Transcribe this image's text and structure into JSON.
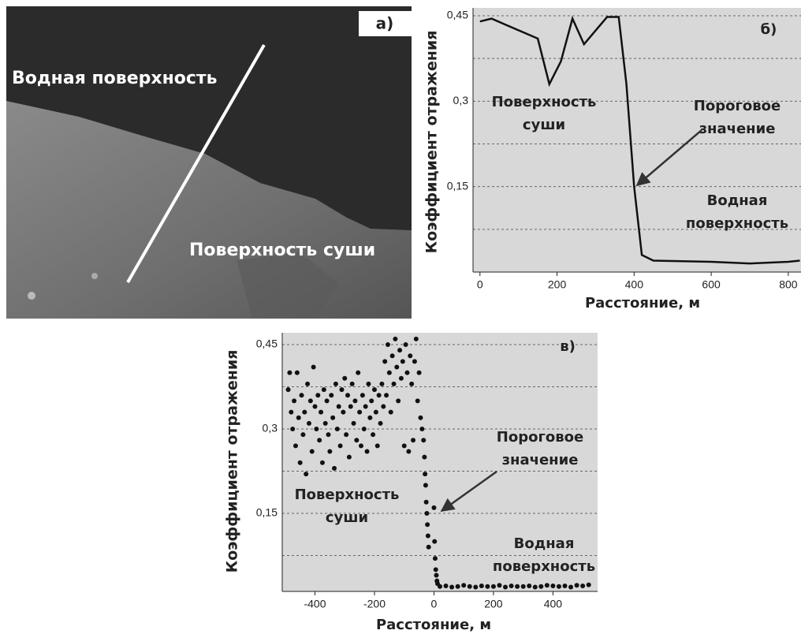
{
  "image": {
    "label": "а)",
    "annotations": [
      "Водная поверхность",
      "Поверхность суши"
    ]
  },
  "chart_data": [
    {
      "type": "line",
      "label": "б)",
      "xlabel": "Расстояние, м",
      "ylabel": "Коэффициент отражения",
      "color": "#111111",
      "x": [
        0,
        30,
        150,
        180,
        210,
        240,
        270,
        330,
        360,
        380,
        400,
        420,
        450,
        600,
        700,
        800,
        830
      ],
      "values": [
        0.44,
        0.445,
        0.41,
        0.33,
        0.37,
        0.445,
        0.4,
        0.448,
        0.448,
        0.33,
        0.15,
        0.03,
        0.02,
        0.018,
        0.015,
        0.018,
        0.02
      ],
      "xlim": [
        -18,
        833
      ],
      "ylim": [
        0,
        0.45
      ],
      "xticks": [
        0,
        200,
        400,
        600,
        800
      ],
      "yticks": [
        {
          "value": 0.15,
          "label": "0,15"
        },
        {
          "value": 0.3,
          "label": "0,3"
        },
        {
          "value": 0.45,
          "label": "0,45"
        }
      ],
      "minor_yticks": [
        0.075,
        0.225,
        0.375
      ],
      "grid": true,
      "annotations": [
        [
          "Поверхность",
          "суши"
        ],
        [
          "Пороговое",
          "значение"
        ],
        [
          "Водная",
          "поверхность"
        ]
      ]
    },
    {
      "type": "scatter",
      "label": "в)",
      "xlabel": "Расстояние, м",
      "ylabel": "Коэффициент отражения",
      "color": "#111111",
      "x": [
        -490,
        -485,
        -480,
        -475,
        -470,
        -465,
        -460,
        -455,
        -450,
        -445,
        -440,
        -435,
        -430,
        -425,
        -420,
        -415,
        -410,
        -405,
        -400,
        -395,
        -390,
        -385,
        -380,
        -375,
        -370,
        -365,
        -360,
        -355,
        -350,
        -345,
        -340,
        -335,
        -330,
        -325,
        -320,
        -315,
        -310,
        -305,
        -300,
        -295,
        -290,
        -285,
        -280,
        -275,
        -270,
        -265,
        -260,
        -255,
        -250,
        -245,
        -240,
        -235,
        -230,
        -225,
        -220,
        -215,
        -210,
        -205,
        -200,
        -195,
        -190,
        -185,
        -180,
        -175,
        -170,
        -165,
        -160,
        -155,
        -150,
        -145,
        -140,
        -135,
        -130,
        -125,
        -120,
        -115,
        -110,
        -105,
        -100,
        -95,
        -90,
        -85,
        -80,
        -75,
        -70,
        -65,
        -60,
        -55,
        -50,
        -45,
        -40,
        -35,
        -32,
        -30,
        -28,
        -26,
        -24,
        -22,
        -20,
        -18,
        0,
        2,
        4,
        6,
        8,
        10,
        12,
        20,
        40,
        60,
        80,
        100,
        120,
        140,
        160,
        180,
        200,
        220,
        240,
        260,
        280,
        300,
        320,
        340,
        360,
        380,
        400,
        420,
        440,
        460,
        480,
        500,
        520
      ],
      "values": [
        0.37,
        0.4,
        0.33,
        0.3,
        0.35,
        0.27,
        0.4,
        0.32,
        0.24,
        0.36,
        0.29,
        0.33,
        0.22,
        0.38,
        0.31,
        0.35,
        0.26,
        0.41,
        0.34,
        0.3,
        0.36,
        0.28,
        0.33,
        0.24,
        0.37,
        0.31,
        0.35,
        0.29,
        0.26,
        0.36,
        0.32,
        0.23,
        0.38,
        0.3,
        0.34,
        0.27,
        0.37,
        0.33,
        0.39,
        0.29,
        0.36,
        0.25,
        0.34,
        0.38,
        0.31,
        0.35,
        0.28,
        0.4,
        0.33,
        0.27,
        0.36,
        0.3,
        0.34,
        0.26,
        0.38,
        0.32,
        0.35,
        0.29,
        0.37,
        0.33,
        0.27,
        0.36,
        0.31,
        0.38,
        0.34,
        0.42,
        0.36,
        0.45,
        0.4,
        0.33,
        0.43,
        0.38,
        0.46,
        0.41,
        0.35,
        0.44,
        0.39,
        0.42,
        0.27,
        0.45,
        0.4,
        0.26,
        0.43,
        0.38,
        0.28,
        0.42,
        0.46,
        0.35,
        0.4,
        0.32,
        0.3,
        0.28,
        0.25,
        0.22,
        0.2,
        0.17,
        0.15,
        0.13,
        0.11,
        0.09,
        0.16,
        0.1,
        0.07,
        0.05,
        0.04,
        0.03,
        0.025,
        0.02,
        0.021,
        0.019,
        0.02,
        0.022,
        0.02,
        0.019,
        0.021,
        0.02,
        0.02,
        0.022,
        0.019,
        0.021,
        0.02,
        0.02,
        0.021,
        0.019,
        0.02,
        0.022,
        0.021,
        0.02,
        0.021,
        0.019,
        0.022,
        0.021,
        0.023
      ],
      "xlim": [
        -510,
        550
      ],
      "ylim": [
        0,
        0.45
      ],
      "xticks": [
        -400,
        -200,
        0,
        200,
        400
      ],
      "yticks": [
        {
          "value": 0.15,
          "label": "0,15"
        },
        {
          "value": 0.3,
          "label": "0,3"
        },
        {
          "value": 0.45,
          "label": "0,45"
        }
      ],
      "minor_yticks": [
        0.075,
        0.225,
        0.375
      ],
      "grid": true,
      "annotations": [
        [
          "Поверхность",
          "суши"
        ],
        [
          "Пороговое",
          "значение"
        ],
        [
          "Водная",
          "поверхность"
        ]
      ]
    }
  ]
}
